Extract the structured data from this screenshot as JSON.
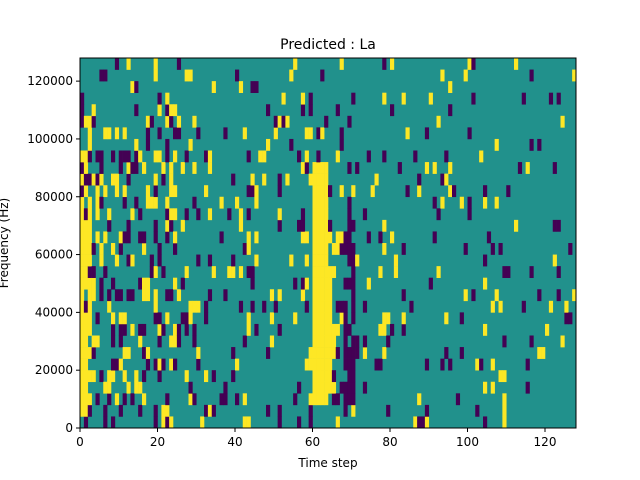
{
  "chart_data": {
    "type": "heatmap",
    "title": "Predicted : La",
    "xlabel": "Time step",
    "ylabel": "Frequency (Hz)",
    "xlim": [
      0,
      128
    ],
    "ylim": [
      0,
      128000
    ],
    "n_time_steps": 128,
    "n_freq_bins": 32,
    "xticks": [
      0,
      20,
      40,
      60,
      80,
      100,
      120
    ],
    "yticks": [
      0,
      20000,
      40000,
      60000,
      80000,
      100000,
      120000
    ],
    "colors": {
      "low": "#440154",
      "mid": "#21918c",
      "high": "#fde725"
    },
    "value_levels": [
      -1,
      0,
      1
    ],
    "seed": 1337
  }
}
